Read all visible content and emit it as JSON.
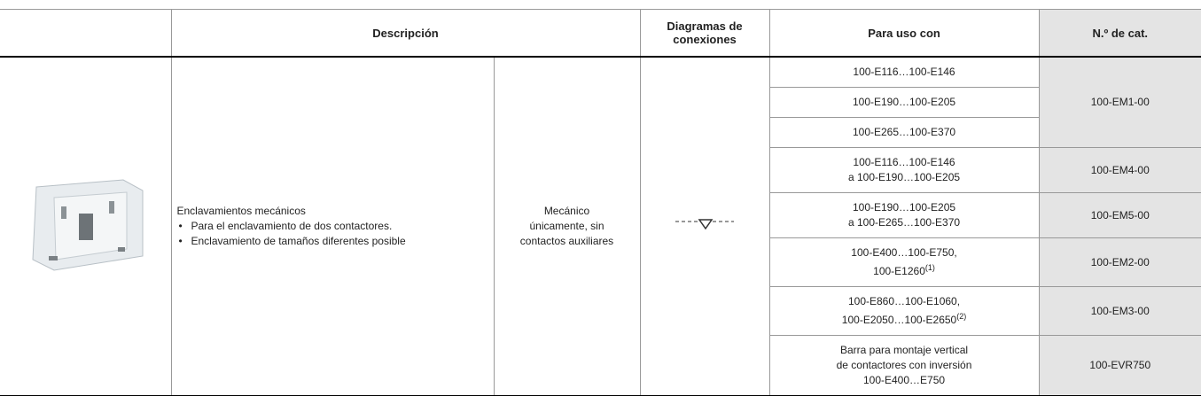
{
  "table": {
    "headers": [
      "Descripción",
      "Diagramas de conexiones",
      "Para uso con",
      "N.º de cat."
    ],
    "description": {
      "title": "Enclavamientos mecánicos",
      "bullets": [
        "Para el enclavamiento de dos contactores.",
        "Enclavamiento de tamaños diferentes posible"
      ]
    },
    "type": "Mecánico únicamente, sin contactos auxiliares",
    "groups": [
      {
        "uses": [
          {
            "lines": [
              "100-E116…100-E146"
            ]
          },
          {
            "lines": [
              "100-E190…100-E205"
            ]
          },
          {
            "lines": [
              "100-E265…100-E370"
            ]
          }
        ],
        "cat": "100-EM1-00"
      },
      {
        "uses": [
          {
            "lines": [
              "100-E116…100-E146",
              "a 100-E190…100-E205"
            ]
          }
        ],
        "cat": "100-EM4-00"
      },
      {
        "uses": [
          {
            "lines": [
              "100-E190…100-E205",
              "a 100-E265…100-E370"
            ]
          }
        ],
        "cat": "100-EM5-00"
      },
      {
        "uses": [
          {
            "lines": [
              "100-E400…100-E750,",
              "100-E1260"
            ],
            "note": "(1)"
          }
        ],
        "cat": "100-EM2-00"
      },
      {
        "uses": [
          {
            "lines": [
              "100-E860…100-E1060,",
              "100-E2050…100-E2650"
            ],
            "note": "(2)"
          }
        ],
        "cat": "100-EM3-00"
      },
      {
        "uses": [
          {
            "lines": [
              "Barra para montaje vertical",
              "de contactores con inversión",
              "100-E400…E750"
            ]
          }
        ],
        "cat": "100-EVR750"
      }
    ]
  }
}
